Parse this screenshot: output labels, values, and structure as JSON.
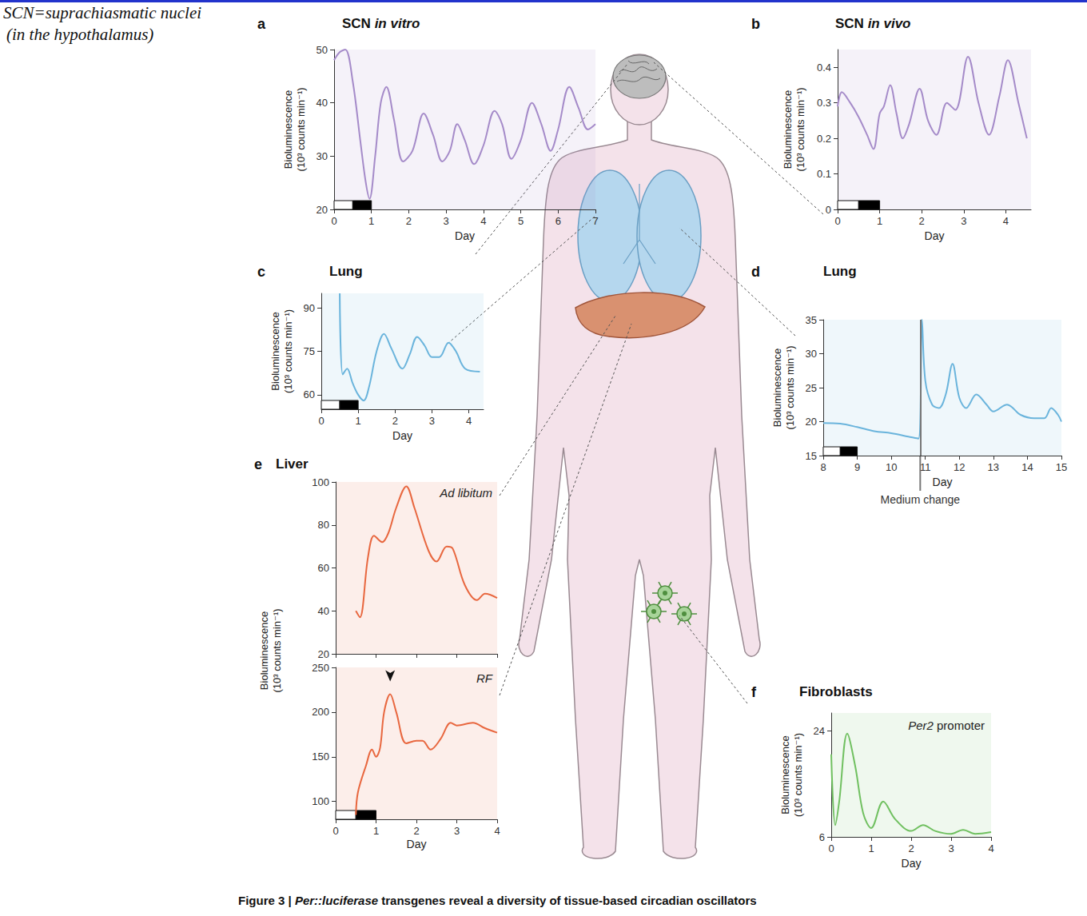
{
  "note": [
    "SCN=suprachiasmatic nuclei",
    "(in the hypothalamus)"
  ],
  "caption_label": "Figure 3 |",
  "caption": "Per::luciferase transgenes reveal a diversity of tissue-based circadian oscillators",
  "chart_data": [
    {
      "panel": "a",
      "type": "line",
      "title": "SCN in vitro",
      "x_label": "Day",
      "y_label": "Bioluminescence (10³ counts min⁻¹)",
      "color": "#a58bc9",
      "grid": false,
      "x": [
        0,
        0.15,
        0.3,
        0.5,
        0.7,
        0.85,
        0.95,
        1.1,
        1.25,
        1.4,
        1.6,
        1.85,
        2.1,
        2.4,
        2.65,
        2.9,
        3.1,
        3.3,
        3.5,
        3.75,
        4.0,
        4.3,
        4.5,
        4.75,
        5.0,
        5.3,
        5.55,
        5.8,
        6.0,
        6.3,
        6.55,
        6.8,
        7.0
      ],
      "values": [
        48,
        49.5,
        50,
        44,
        33,
        25,
        22,
        30,
        40,
        43,
        37,
        29,
        31,
        38,
        34,
        29,
        31,
        36,
        33,
        28.5,
        32,
        38.5,
        36,
        29.5,
        33,
        40,
        36,
        31,
        35,
        43,
        39,
        35,
        36
      ],
      "xlim": [
        0,
        7
      ],
      "xticks": [
        0,
        1,
        2,
        3,
        4,
        5,
        6,
        7
      ],
      "ylim": [
        20,
        50
      ],
      "yticks": [
        20,
        30,
        40,
        50
      ],
      "light_dark": [
        {
          "from": 0,
          "to": 0.5,
          "color": "#ffffff"
        },
        {
          "from": 0.5,
          "to": 1,
          "color": "#000000"
        }
      ]
    },
    {
      "panel": "b",
      "type": "line",
      "title": "SCN in vivo",
      "x_label": "Day",
      "y_label": "Bioluminescence (10³ counts min⁻¹)",
      "color": "#a58bc9",
      "grid": false,
      "x": [
        0,
        0.1,
        0.3,
        0.5,
        0.7,
        0.85,
        1.0,
        1.1,
        1.25,
        1.4,
        1.55,
        1.7,
        1.95,
        2.15,
        2.35,
        2.6,
        2.8,
        3.1,
        3.35,
        3.6,
        3.85,
        4.05,
        4.3,
        4.5
      ],
      "values": [
        0.29,
        0.33,
        0.3,
        0.26,
        0.21,
        0.17,
        0.27,
        0.29,
        0.35,
        0.27,
        0.2,
        0.24,
        0.34,
        0.25,
        0.21,
        0.3,
        0.28,
        0.43,
        0.3,
        0.21,
        0.32,
        0.42,
        0.3,
        0.2
      ],
      "xlim": [
        0,
        4.6
      ],
      "xticks": [
        0,
        1,
        2,
        3,
        4
      ],
      "ylim": [
        0,
        0.45
      ],
      "yticks": [
        0,
        0.1,
        0.2,
        0.3,
        0.4
      ],
      "light_dark": [
        {
          "from": 0,
          "to": 0.5,
          "color": "#ffffff"
        },
        {
          "from": 0.5,
          "to": 1,
          "color": "#000000"
        }
      ]
    },
    {
      "panel": "c",
      "type": "line",
      "title": "Lung",
      "x_label": "Day",
      "y_label": "Bioluminescence (10³ counts min⁻¹)",
      "color": "#6ab4dc",
      "grid": false,
      "x": [
        0.5,
        0.58,
        0.7,
        0.85,
        1.0,
        1.15,
        1.3,
        1.5,
        1.7,
        1.9,
        2.2,
        2.4,
        2.6,
        2.8,
        3.0,
        3.2,
        3.45,
        3.65,
        3.9,
        4.3
      ],
      "values": [
        95,
        67,
        69,
        64,
        60,
        58,
        63,
        75,
        81,
        76,
        69,
        74,
        80,
        77,
        73,
        73,
        78,
        75,
        69,
        68
      ],
      "xlim": [
        0,
        4.4
      ],
      "xticks": [
        0,
        1,
        2,
        3,
        4
      ],
      "ylim": [
        55,
        95
      ],
      "yticks": [
        60,
        75,
        90
      ],
      "light_dark": [
        {
          "from": 0,
          "to": 0.5,
          "color": "#ffffff"
        },
        {
          "from": 0.5,
          "to": 1,
          "color": "#000000"
        }
      ]
    },
    {
      "panel": "d",
      "type": "line",
      "title": "Lung",
      "x_label": "Day",
      "y_label": "Bioluminescence (10³ counts min⁻¹)",
      "color": "#6ab4dc",
      "grid": false,
      "x": [
        8,
        8.5,
        9,
        9.5,
        10,
        10.5,
        10.8,
        10.9,
        11,
        11.2,
        11.4,
        11.6,
        11.8,
        12,
        12.2,
        12.5,
        12.8,
        13,
        13.4,
        13.8,
        14.2,
        14.5,
        14.7,
        14.9,
        15
      ],
      "values": [
        19.8,
        19.7,
        19.2,
        18.6,
        18.3,
        17.8,
        17.5,
        35,
        26,
        22.5,
        22,
        24,
        28.5,
        23.5,
        22,
        24,
        22.5,
        21.5,
        22.5,
        21,
        20.5,
        20.5,
        22,
        21,
        20
      ],
      "xlim": [
        8,
        15
      ],
      "xticks": [
        8,
        9,
        10,
        11,
        12,
        13,
        14,
        15
      ],
      "ylim": [
        15,
        35
      ],
      "yticks": [
        15,
        20,
        25,
        30,
        35
      ],
      "annotation": {
        "text": "Medium change",
        "x": 10.85
      },
      "light_dark": [
        {
          "from": 8,
          "to": 8.5,
          "color": "#ffffff"
        },
        {
          "from": 8.5,
          "to": 9,
          "color": "#000000"
        }
      ]
    },
    {
      "panel": "e",
      "type": "line",
      "title": "Liver",
      "y_label": "Bioluminescence (10³ counts min⁻¹)",
      "color": "#e8673f",
      "grid": false,
      "tick_labels": "y",
      "x": [
        0.5,
        0.6,
        0.8,
        0.95,
        1.15,
        1.3,
        1.5,
        1.75,
        1.95,
        2.3,
        2.5,
        2.75,
        2.9,
        3.2,
        3.5,
        3.7,
        4.0
      ],
      "values": [
        40,
        37,
        65,
        75,
        72,
        76,
        88,
        98,
        88,
        68,
        63,
        70,
        69,
        52,
        45,
        48,
        46
      ],
      "xlim": [
        0,
        4
      ],
      "xticks": [
        0,
        1,
        2,
        3,
        4
      ],
      "ylim": [
        20,
        100
      ],
      "yticks": [
        20,
        40,
        60,
        80,
        100
      ],
      "annotation": {
        "text": "Ad libitum"
      },
      "arrow_x": 1.75
    },
    {
      "type": "line",
      "x_label": "Day",
      "color": "#e8673f",
      "grid": false,
      "x": [
        0.5,
        0.55,
        0.75,
        0.9,
        1.0,
        1.1,
        1.2,
        1.35,
        1.5,
        1.75,
        2.0,
        2.15,
        2.35,
        2.6,
        2.85,
        3.0,
        3.4,
        3.7,
        4.0
      ],
      "values": [
        85,
        110,
        140,
        158,
        150,
        160,
        200,
        220,
        200,
        165,
        168,
        168,
        158,
        170,
        188,
        185,
        188,
        182,
        177
      ],
      "xlim": [
        0,
        4
      ],
      "xticks": [
        0,
        1,
        2,
        3,
        4
      ],
      "ylim": [
        80,
        250
      ],
      "yticks": [
        100,
        150,
        200,
        250
      ],
      "annotation": {
        "text": "RF"
      },
      "arrow_x": 1.35,
      "light_dark": [
        {
          "from": 0,
          "to": 0.5,
          "color": "#ffffff"
        },
        {
          "from": 0.5,
          "to": 1,
          "color": "#000000"
        }
      ]
    },
    {
      "panel": "f",
      "type": "line",
      "title": "Fibroblasts",
      "subtitle": "Per2 promoter",
      "x_label": "Day",
      "y_label": "Bioluminescence (10³ counts min⁻¹)",
      "color": "#70c060",
      "grid": false,
      "x": [
        0,
        0.1,
        0.2,
        0.4,
        0.6,
        0.8,
        1.0,
        1.3,
        1.6,
        2.0,
        2.3,
        2.6,
        3.0,
        3.3,
        3.6,
        4.0
      ],
      "values": [
        20,
        8,
        12,
        23.5,
        18,
        10,
        7.5,
        12,
        9,
        7,
        8,
        7,
        6.5,
        7.2,
        6.5,
        6.8
      ],
      "xlim": [
        0,
        4
      ],
      "xticks": [
        0,
        1,
        2,
        3,
        4
      ],
      "ylim": [
        6,
        27
      ],
      "yticks": [
        6,
        24
      ]
    }
  ]
}
